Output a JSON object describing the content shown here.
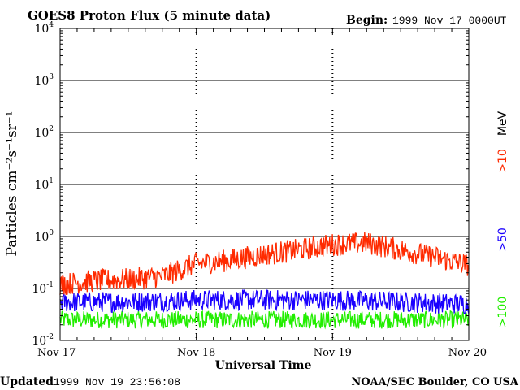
{
  "chart_data": {
    "type": "line",
    "title": "GOES8 Proton Flux (5 minute data)",
    "begin_label": "Begin:",
    "begin_value": "1999 Nov 17 0000UT",
    "xlabel": "Universal Time",
    "ylabel": "Particles cm⁻²s⁻¹sr⁻¹",
    "x_ticks": [
      "Nov 17",
      "Nov 18",
      "Nov 19",
      "Nov 20"
    ],
    "y_scale": "log",
    "ylim": [
      0.01,
      10000
    ],
    "y_ticks": [
      {
        "base": "10",
        "exp": "-2"
      },
      {
        "base": "10",
        "exp": "-1"
      },
      {
        "base": "10",
        "exp": "0"
      },
      {
        "base": "10",
        "exp": "1"
      },
      {
        "base": "10",
        "exp": "2"
      },
      {
        "base": "10",
        "exp": "3"
      },
      {
        "base": "10",
        "exp": "4"
      }
    ],
    "grid": "horizontal decade lines",
    "energy_unit": "MeV",
    "series": [
      {
        "name": ">10",
        "color": "#ff2a00",
        "x_days": [
          0.0,
          0.25,
          0.5,
          0.75,
          1.0,
          1.25,
          1.5,
          1.75,
          2.0,
          2.25,
          2.5,
          2.75,
          3.0
        ],
        "values": [
          0.12,
          0.14,
          0.15,
          0.17,
          0.3,
          0.35,
          0.45,
          0.55,
          0.7,
          0.75,
          0.55,
          0.4,
          0.28
        ]
      },
      {
        "name": ">50",
        "color": "#1a00ff",
        "x_days": [
          0.0,
          0.5,
          1.0,
          1.5,
          2.0,
          2.5,
          3.0
        ],
        "values": [
          0.055,
          0.055,
          0.06,
          0.06,
          0.06,
          0.055,
          0.05
        ]
      },
      {
        "name": ">100",
        "color": "#22ee00",
        "x_days": [
          0.0,
          0.5,
          1.0,
          1.5,
          2.0,
          2.5,
          3.0
        ],
        "values": [
          0.025,
          0.025,
          0.025,
          0.025,
          0.025,
          0.025,
          0.025
        ]
      }
    ]
  },
  "footer": {
    "updated_label": "Updated",
    "updated_value": "1999 Nov 19 23:56:08",
    "credit": "NOAA/SEC Boulder, CO USA"
  }
}
